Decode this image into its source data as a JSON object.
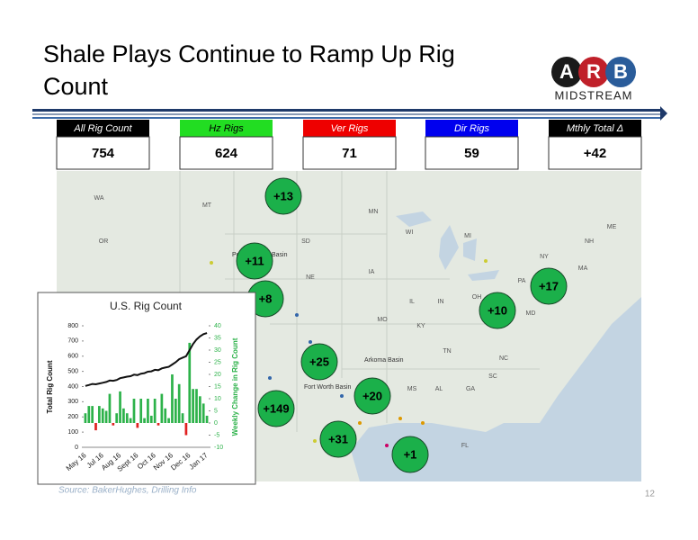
{
  "header": {
    "title_lines": [
      "Shale Plays Continue to Ramp Up Rig",
      "Count"
    ]
  },
  "logo": {
    "letters": [
      "A",
      "R",
      "B"
    ],
    "subtitle": "MIDSTREAM"
  },
  "stats": [
    {
      "label": "All Rig Count",
      "value": "754",
      "color": "#000000"
    },
    {
      "label": "Hz Rigs",
      "value": "624",
      "color": "#22dd22"
    },
    {
      "label": "Ver Rigs",
      "value": "71",
      "color": "#ee0000"
    },
    {
      "label": "Dir Rigs",
      "value": "59",
      "color": "#0000ee"
    },
    {
      "label": "Mthly Total Δ",
      "value": "+42",
      "color": "#000000"
    }
  ],
  "map": {
    "state_labels": [
      "WA",
      "OR",
      "MT",
      "SD",
      "MN",
      "WI",
      "MI",
      "NE",
      "IA",
      "IL",
      "IN",
      "OH",
      "MO",
      "KY",
      "TN",
      "NC",
      "SC",
      "AL",
      "GA",
      "MS",
      "FL",
      "PA",
      "NY",
      "NH",
      "ME",
      "MA",
      "MD"
    ],
    "basin_labels": [
      "Powder River Basin",
      "Fort Worth Basin",
      "Arkoma Basin"
    ],
    "bubbles": [
      "+13",
      "+11",
      "+8",
      "+25",
      "+149",
      "+20",
      "+31",
      "+1",
      "+10",
      "+17"
    ]
  },
  "chart_data": {
    "type": "bar",
    "title": "U.S. Rig Count",
    "y_label": "Total Rig Count",
    "y2_label": "Weekly Change in Rig Count",
    "categories": [
      "May 16",
      null,
      null,
      null,
      null,
      "Jul 16",
      null,
      null,
      null,
      null,
      "Aug 16",
      null,
      null,
      null,
      null,
      "Sept 16",
      null,
      null,
      null,
      null,
      "Oct 16",
      null,
      null,
      null,
      null,
      "Nov 16",
      null,
      null,
      null,
      null,
      "Dec 16",
      null,
      null,
      null,
      null,
      "Jan 17"
    ],
    "series": [
      {
        "name": "Weekly Change in Rig Count",
        "axis": "y2",
        "color": "#2db24a",
        "negative_color": "#e02020",
        "values": [
          4,
          7,
          7,
          -3,
          7,
          6,
          5,
          12,
          -1,
          4,
          13,
          6,
          4,
          2,
          10,
          -2,
          10,
          2,
          10,
          3,
          10,
          -1,
          12,
          6,
          2,
          20,
          10,
          16,
          4,
          -5,
          33,
          14,
          14,
          11,
          8,
          3
        ]
      },
      {
        "name": "Total Rig Count",
        "color": "#111111",
        "values": [
          404,
          410,
          417,
          415,
          420,
          425,
          430,
          440,
          438,
          443,
          455,
          460,
          465,
          468,
          478,
          475,
          485,
          488,
          498,
          500,
          510,
          508,
          520,
          525,
          530,
          545,
          560,
          580,
          590,
          600,
          640,
          680,
          710,
          730,
          745,
          752
        ]
      }
    ],
    "ylim": [
      0,
      800
    ],
    "yticks": [
      0,
      100,
      200,
      300,
      400,
      500,
      600,
      700,
      800
    ],
    "y2lim": [
      -10,
      40
    ],
    "y2ticks": [
      -10,
      -5,
      0,
      5,
      10,
      15,
      20,
      25,
      30,
      35,
      40
    ]
  },
  "footer": {
    "source": "Source: BakerHughes, Drilling Info",
    "page": "12"
  }
}
